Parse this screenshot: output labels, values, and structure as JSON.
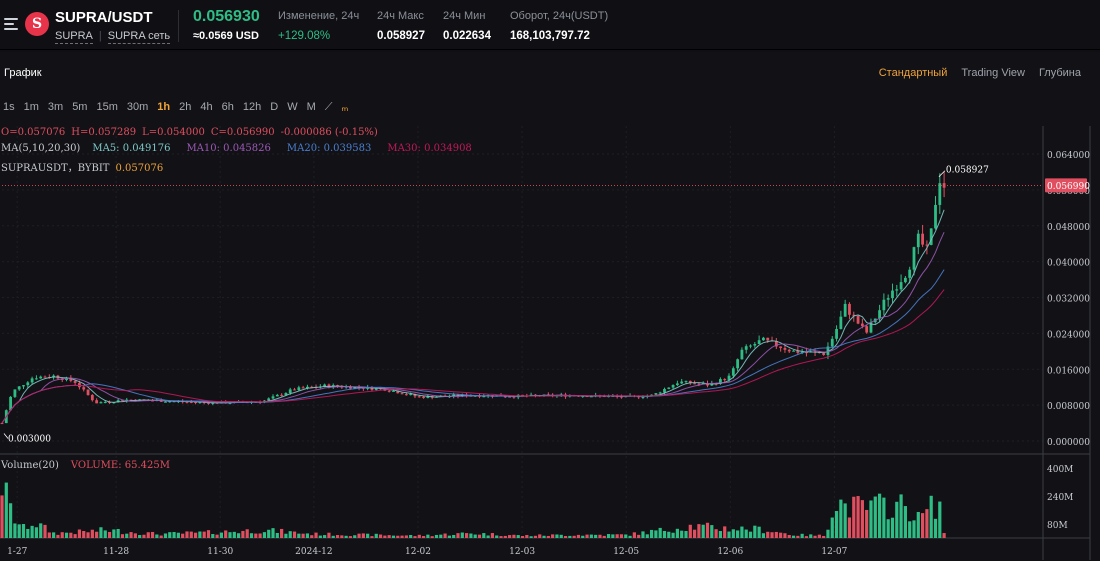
{
  "header": {
    "pair": "SUPRA/USDT",
    "base_link": "SUPRA",
    "network_link": "SUPRA сеть",
    "last_price": "0.056930",
    "price_usd": "≈0.0569 USD",
    "change_label": "Изменение, 24ч",
    "change_value": "+129.08%",
    "high_label": "24ч Макс",
    "high_value": "0.058927",
    "low_label": "24ч Мин",
    "low_value": "0.022634",
    "turnover_label": "Оборот, 24ч(USDT)",
    "turnover_value": "168,103,797.72"
  },
  "panel": {
    "title": "График",
    "view_tabs": [
      {
        "label": "Стандартный",
        "active": true
      },
      {
        "label": "Trading View",
        "active": false
      },
      {
        "label": "Глубина",
        "active": false
      }
    ],
    "intervals": [
      "1s",
      "1m",
      "3m",
      "5m",
      "15m",
      "30m",
      "1h",
      "2h",
      "4h",
      "6h",
      "12h",
      "D",
      "W",
      "M"
    ],
    "active_interval": "1h"
  },
  "legend": {
    "ohlc": {
      "o": "O=0.057076",
      "h": "H=0.057289",
      "l": "L=0.054000",
      "c": "C=0.056990",
      "chg": "-0.000086 (-0.15%)"
    },
    "ma_label": "MA(5,10,20,30)",
    "ma5": "MA5: 0.049176",
    "ma10": "MA10: 0.045826",
    "ma20": "MA20: 0.039583",
    "ma30": "MA30: 0.034908",
    "symbol": "SUPRAUSDT，BYBIT",
    "symbol_price": "0.057076",
    "volume_label": "Volume(20)",
    "volume_value": "VOLUME: 65.425M"
  },
  "colors": {
    "up": "#2ebd85",
    "down": "#e04f5f",
    "ma5": "#7ec8c8",
    "ma10": "#9b59b6",
    "ma20": "#4a7fd0",
    "ma30": "#c2185b",
    "accent": "#f0a33a"
  },
  "chart_data": {
    "type": "candlestick",
    "price_axis": {
      "ticks": [
        "0.064000",
        "0.056000",
        "0.048000",
        "0.040000",
        "0.032000",
        "0.024000",
        "0.016000",
        "0.008000",
        "0.000000"
      ],
      "min": 0,
      "max": 0.064
    },
    "volume_axis": {
      "ticks": [
        "400M",
        "240M",
        "80M"
      ],
      "min": 0,
      "max": 400
    },
    "x_ticks": [
      "1-27",
      "11-28",
      "11-30",
      "2024-12",
      "12-02",
      "12-03",
      "12-05",
      "12-06",
      "12-07"
    ],
    "last_price_marker": "0.056990",
    "high_marker": "0.058927",
    "low_marker": "0.003000",
    "price_path": [
      [
        0,
        0.004
      ],
      [
        0.01,
        0.011
      ],
      [
        0.03,
        0.0142
      ],
      [
        0.05,
        0.0145
      ],
      [
        0.07,
        0.0132
      ],
      [
        0.09,
        0.0085
      ],
      [
        0.12,
        0.0092
      ],
      [
        0.15,
        0.009
      ],
      [
        0.2,
        0.0085
      ],
      [
        0.25,
        0.0088
      ],
      [
        0.28,
        0.0115
      ],
      [
        0.31,
        0.0123
      ],
      [
        0.34,
        0.012
      ],
      [
        0.37,
        0.0115
      ],
      [
        0.4,
        0.0098
      ],
      [
        0.45,
        0.0102
      ],
      [
        0.5,
        0.01
      ],
      [
        0.55,
        0.0102
      ],
      [
        0.6,
        0.0098
      ],
      [
        0.625,
        0.0102
      ],
      [
        0.65,
        0.0132
      ],
      [
        0.68,
        0.0125
      ],
      [
        0.7,
        0.0145
      ],
      [
        0.71,
        0.02
      ],
      [
        0.73,
        0.0225
      ],
      [
        0.76,
        0.02
      ],
      [
        0.79,
        0.0195
      ],
      [
        0.8,
        0.024
      ],
      [
        0.81,
        0.03
      ],
      [
        0.83,
        0.024
      ],
      [
        0.85,
        0.032
      ],
      [
        0.87,
        0.038
      ],
      [
        0.88,
        0.045
      ],
      [
        0.89,
        0.042
      ],
      [
        0.9,
        0.059
      ],
      [
        0.905,
        0.057
      ]
    ],
    "volume_path": [
      [
        0,
        350
      ],
      [
        0.01,
        140
      ],
      [
        0.02,
        60
      ],
      [
        0.03,
        100
      ],
      [
        0.05,
        30
      ],
      [
        0.08,
        40
      ],
      [
        0.1,
        50
      ],
      [
        0.15,
        25
      ],
      [
        0.2,
        35
      ],
      [
        0.25,
        50
      ],
      [
        0.3,
        25
      ],
      [
        0.35,
        20
      ],
      [
        0.4,
        15
      ],
      [
        0.45,
        30
      ],
      [
        0.5,
        15
      ],
      [
        0.55,
        20
      ],
      [
        0.6,
        20
      ],
      [
        0.63,
        45
      ],
      [
        0.66,
        75
      ],
      [
        0.7,
        60
      ],
      [
        0.73,
        55
      ],
      [
        0.76,
        20
      ],
      [
        0.79,
        15
      ],
      [
        0.8,
        245
      ],
      [
        0.81,
        200
      ],
      [
        0.83,
        190
      ],
      [
        0.85,
        210
      ],
      [
        0.87,
        200
      ],
      [
        0.88,
        120
      ],
      [
        0.89,
        180
      ],
      [
        0.9,
        230
      ],
      [
        0.905,
        40
      ]
    ]
  }
}
